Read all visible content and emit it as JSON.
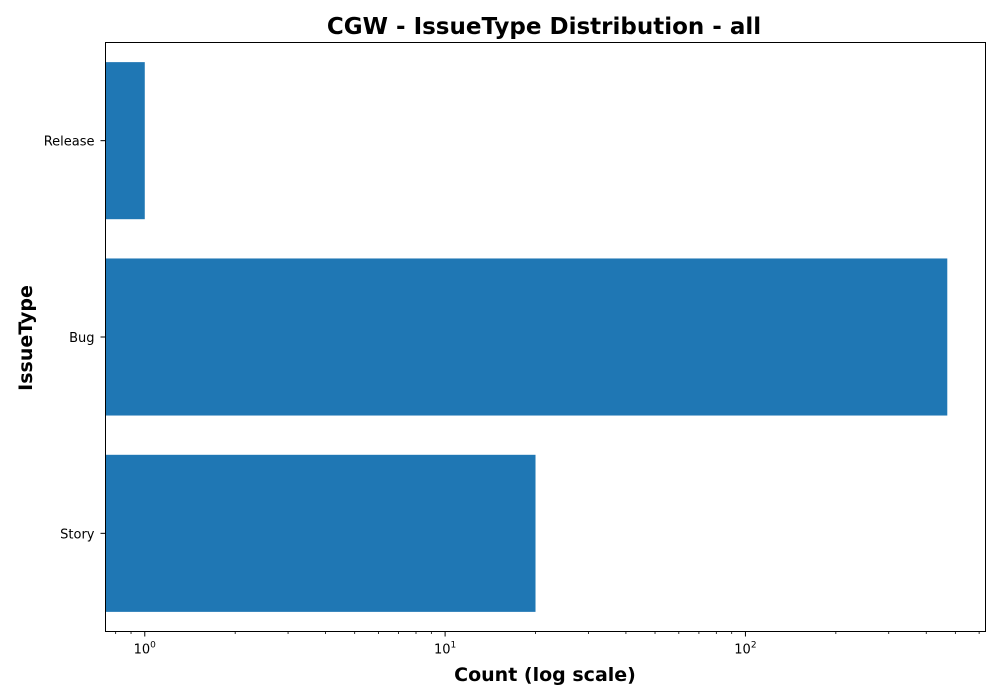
{
  "chart_data": {
    "type": "bar",
    "orientation": "horizontal",
    "title": "CGW - IssueType Distribution - all",
    "xlabel": "Count (log scale)",
    "ylabel": "IssueType",
    "x_scale": "log",
    "xlim": [
      0.74,
      630
    ],
    "x_ticks": [
      {
        "value": 1,
        "base": "10",
        "exp": "0"
      },
      {
        "value": 10,
        "base": "10",
        "exp": "1"
      },
      {
        "value": 100,
        "base": "10",
        "exp": "2"
      }
    ],
    "categories": [
      "Release",
      "Bug",
      "Story"
    ],
    "values": [
      1,
      470,
      20
    ],
    "bar_color": "#1f77b4",
    "grid": false,
    "legend": false
  }
}
